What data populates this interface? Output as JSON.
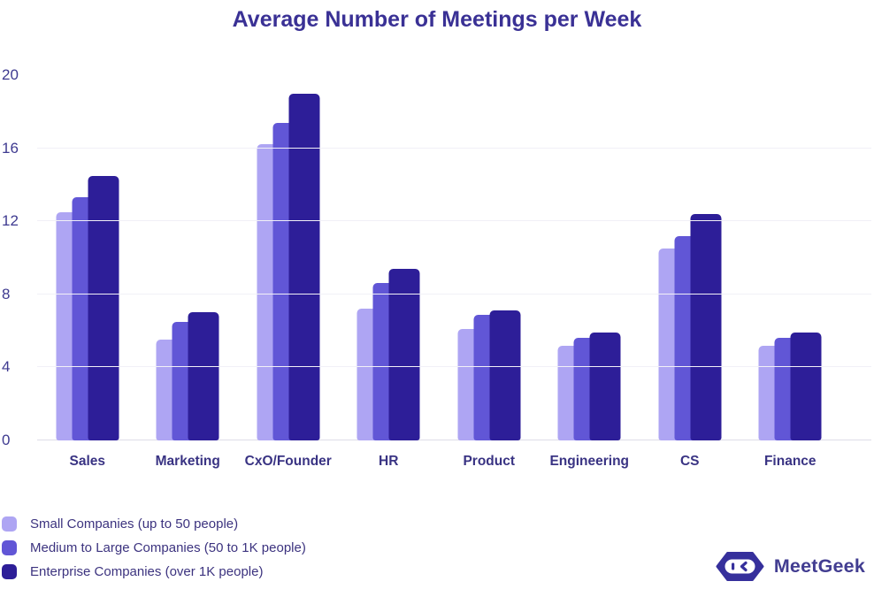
{
  "title": "Average Number of Meetings per Week",
  "chart_data": {
    "type": "bar",
    "title": "Average Number of Meetings per Week",
    "xlabel": "",
    "ylabel": "",
    "categories": [
      "Sales",
      "Marketing",
      "CxO/Founder",
      "HR",
      "Product",
      "Engineering",
      "CS",
      "Finance"
    ],
    "series": [
      {
        "name": "Small Companies (up to 50 people)",
        "color": "#aea5f3",
        "values": [
          12.5,
          5.5,
          16.2,
          7.2,
          6.1,
          5.2,
          10.5,
          5.2
        ]
      },
      {
        "name": "Medium to Large Companies (50 to 1K people)",
        "color": "#6156d6",
        "values": [
          13.3,
          6.5,
          17.4,
          8.6,
          6.9,
          5.6,
          11.2,
          5.6
        ]
      },
      {
        "name": "Enterprise Companies (over 1K people)",
        "color": "#2d1e98",
        "values": [
          14.5,
          7.0,
          19.0,
          9.4,
          7.1,
          5.9,
          12.4,
          5.9
        ]
      }
    ],
    "ylim": [
      0,
      20
    ],
    "yticks": [
      0,
      4,
      8,
      12,
      16,
      20
    ],
    "grid": "horizontal",
    "legend_position": "bottom-left"
  },
  "branding": {
    "logo_text": "MeetGeek",
    "logo_icon": "meetgeek-robot-hexagon-icon",
    "logo_color": "#36309c"
  }
}
